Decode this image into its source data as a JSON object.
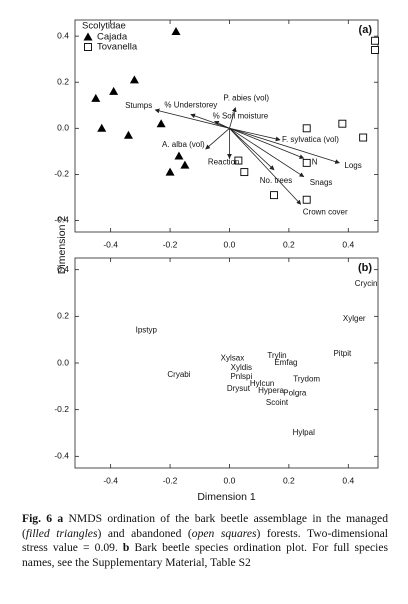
{
  "chart_data": [
    {
      "type": "scatter",
      "panel_label": "(a)",
      "ylabel": "Dimension 2",
      "xlim": [
        -0.52,
        0.5
      ],
      "ylim": [
        -0.45,
        0.47
      ],
      "xticks": [
        -0.4,
        -0.2,
        {
          "value": 0,
          "label": "0.0"
        },
        0.2,
        0.4
      ],
      "yticks": [
        0.4,
        0.2,
        {
          "value": 0,
          "label": "0.0"
        },
        -0.2,
        -0.4
      ],
      "legend": {
        "title": "Scolytidae",
        "position": "upper left"
      },
      "series": [
        {
          "name": "Cajada",
          "marker": "triangle",
          "color": "#000000",
          "x": [
            -0.18,
            -0.32,
            -0.39,
            -0.45,
            -0.43,
            -0.34,
            -0.23,
            -0.17,
            -0.15,
            -0.2
          ],
          "y": [
            0.42,
            0.21,
            0.16,
            0.13,
            0.0,
            -0.03,
            0.02,
            -0.12,
            -0.16,
            -0.19
          ]
        },
        {
          "name": "Tovanella",
          "marker": "square",
          "color": "#000000",
          "x": [
            0.49,
            0.49,
            0.38,
            0.26,
            0.45,
            0.26,
            0.03,
            0.05,
            0.15,
            0.26
          ],
          "y": [
            0.38,
            0.34,
            0.02,
            0.0,
            -0.04,
            -0.15,
            -0.14,
            -0.19,
            -0.29,
            -0.31
          ]
        }
      ],
      "vectors": [
        {
          "label": "Stumps",
          "x": -0.25,
          "y": 0.08
        },
        {
          "label": "% Understorey",
          "x": -0.13,
          "y": 0.06
        },
        {
          "label": "P. abies (vol)",
          "x": 0.02,
          "y": 0.09
        },
        {
          "label": "% Soil moisture",
          "x": -0.05,
          "y": 0.03
        },
        {
          "label": "F. sylvatica (vol)",
          "x": 0.17,
          "y": -0.05
        },
        {
          "label": "A. alba (vol)",
          "x": -0.08,
          "y": -0.09
        },
        {
          "label": "Reaction",
          "x": 0.0,
          "y": -0.13
        },
        {
          "label": "N",
          "x": 0.25,
          "y": -0.13
        },
        {
          "label": "Logs",
          "x": 0.37,
          "y": -0.15
        },
        {
          "label": "Snags",
          "x": 0.25,
          "y": -0.21
        },
        {
          "label": "No. trees",
          "x": 0.15,
          "y": -0.18
        },
        {
          "label": "Crown cover",
          "x": 0.24,
          "y": -0.33
        }
      ]
    },
    {
      "type": "text-scatter",
      "panel_label": "(b)",
      "xlabel": "Dimension 1",
      "xlim": [
        -0.52,
        0.5
      ],
      "ylim": [
        -0.45,
        0.45
      ],
      "xticks": [
        -0.4,
        -0.2,
        {
          "value": 0,
          "label": "0.0"
        },
        0.2,
        0.4
      ],
      "yticks": [
        0.4,
        0.2,
        {
          "value": 0,
          "label": "0.0"
        },
        -0.2,
        -0.4
      ],
      "labels": [
        "Crycin",
        "Xylger",
        "Ipstyp",
        "Pitpit",
        "Trylin",
        "Emfag",
        "Xylsax",
        "Xyldis",
        "Cryabi",
        "Pnlspi",
        "Trydom",
        "Hylcun",
        "Drysut",
        "Hypera",
        "Polgra",
        "Scoint",
        "Hylpal"
      ],
      "x": [
        0.46,
        0.42,
        -0.28,
        0.38,
        0.16,
        0.19,
        0.01,
        0.04,
        -0.17,
        0.04,
        0.26,
        0.11,
        0.03,
        0.14,
        0.22,
        0.16,
        0.25
      ],
      "y": [
        0.34,
        0.19,
        0.14,
        0.04,
        0.03,
        0.0,
        0.02,
        -0.02,
        -0.05,
        -0.06,
        -0.07,
        -0.09,
        -0.11,
        -0.12,
        -0.13,
        -0.17,
        -0.3
      ]
    }
  ],
  "caption": [
    {
      "text": "Fig. 6",
      "style": "bold"
    },
    {
      "text": " a",
      "style": "bold"
    },
    {
      "text": " NMDS ordination of the bark beetle assemblage in the managed ("
    },
    {
      "text": "filled triangles",
      "style": "italic"
    },
    {
      "text": ") and abandoned ("
    },
    {
      "text": "open squares",
      "style": "italic"
    },
    {
      "text": ") forests. Two-dimensional stress value = 0.09. "
    },
    {
      "text": "b",
      "style": "bold"
    },
    {
      "text": " Bark beetle species ordination plot. For full species names, see the Supplementary Material, Table S2"
    }
  ]
}
